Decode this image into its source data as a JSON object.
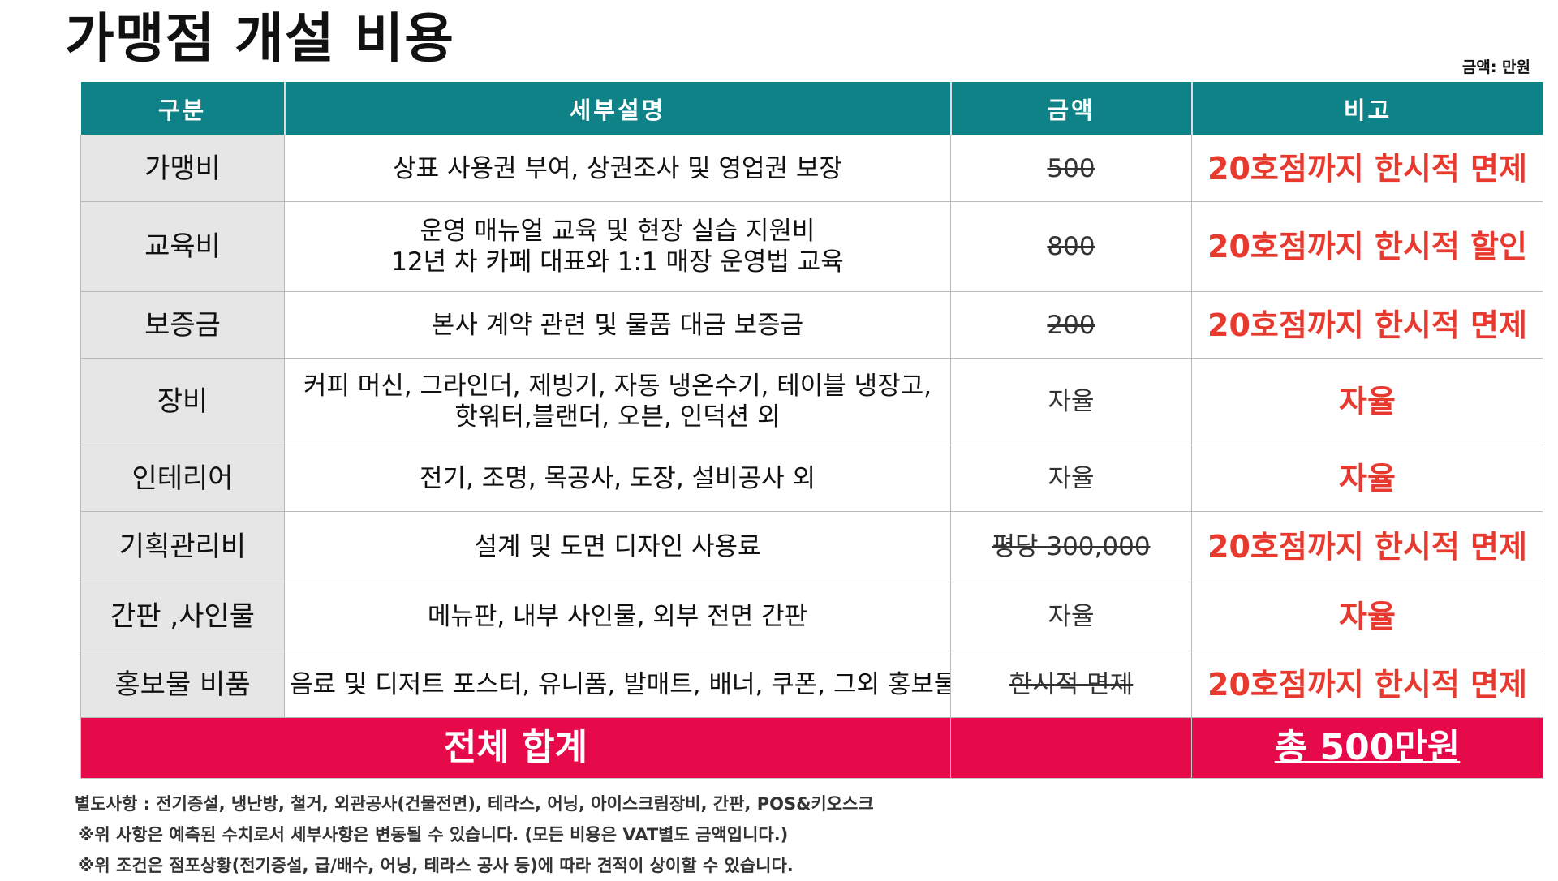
{
  "title": "가맹점 개설 비용",
  "unit_note": "금액: 만원",
  "colors": {
    "header_bg": "#0e8287",
    "category_bg": "#e6e6e6",
    "note_red": "#e8392f",
    "total_bg": "#e60a4b"
  },
  "table": {
    "headers": [
      "구분",
      "세부설명",
      "금액",
      "비고"
    ],
    "rows": [
      {
        "category": "가맹비",
        "desc_line1": "상표 사용권 부여, 상권조사 및 영업권 보장",
        "desc_line2": "",
        "amount": "500",
        "amount_struck": true,
        "note": "20호점까지 한시적 면제"
      },
      {
        "category": "교육비",
        "desc_line1": "운영 매뉴얼 교육 및 현장 실습 지원비",
        "desc_line2": "12년 차 카페 대표와 1:1 매장 운영법 교육",
        "amount": "800",
        "amount_struck": true,
        "note": "20호점까지 한시적 할인"
      },
      {
        "category": "보증금",
        "desc_line1": "본사 계약 관련 및 물품 대금 보증금",
        "desc_line2": "",
        "amount": "200",
        "amount_struck": true,
        "note": "20호점까지 한시적 면제"
      },
      {
        "category": "장비",
        "desc_line1": "커피 머신, 그라인더, 제빙기, 자동 냉온수기, 테이블 냉장고,",
        "desc_line2": "핫워터,블랜더, 오븐, 인덕션 외",
        "amount": "자율",
        "amount_struck": false,
        "note": "자율"
      },
      {
        "category": "인테리어",
        "desc_line1": "전기, 조명, 목공사, 도장, 설비공사 외",
        "desc_line2": "",
        "amount": "자율",
        "amount_struck": false,
        "note": "자율"
      },
      {
        "category": "기획관리비",
        "desc_line1": "설계 및 도면 디자인 사용료",
        "desc_line2": "",
        "amount": "평당 300,000",
        "amount_struck": true,
        "note": "20호점까지 한시적 면제"
      },
      {
        "category": "간판 ,사인물",
        "desc_line1": "메뉴판, 내부 사인물, 외부 전면 간판",
        "desc_line2": "",
        "amount": "자율",
        "amount_struck": false,
        "note": "자율"
      },
      {
        "category": "홍보물 비품",
        "desc_line1": "음료 및 디저트 포스터, 유니폼, 발매트, 배너, 쿠폰, 그외 홍보물",
        "desc_line2": "",
        "amount": "한시적 면제",
        "amount_struck": true,
        "note": "20호점까지 한시적 면제"
      }
    ],
    "total_label": "전체 합계",
    "total_value": "총 500만원"
  },
  "footnotes": [
    "별도사항 : 전기증설, 냉난방, 철거, 외관공사(건물전면), 테라스, 어닝, 아이스크림장비, 간판, POS&키오스크",
    "※위 사항은 예측된 수치로서 세부사항은 변동될 수 있습니다. (모든 비용은 VAT별도 금액입니다.)",
    "※위 조건은 점포상황(전기증설, 급/배수, 어닝, 테라스 공사 등)에 따라 견적이 상이할 수 있습니다."
  ]
}
